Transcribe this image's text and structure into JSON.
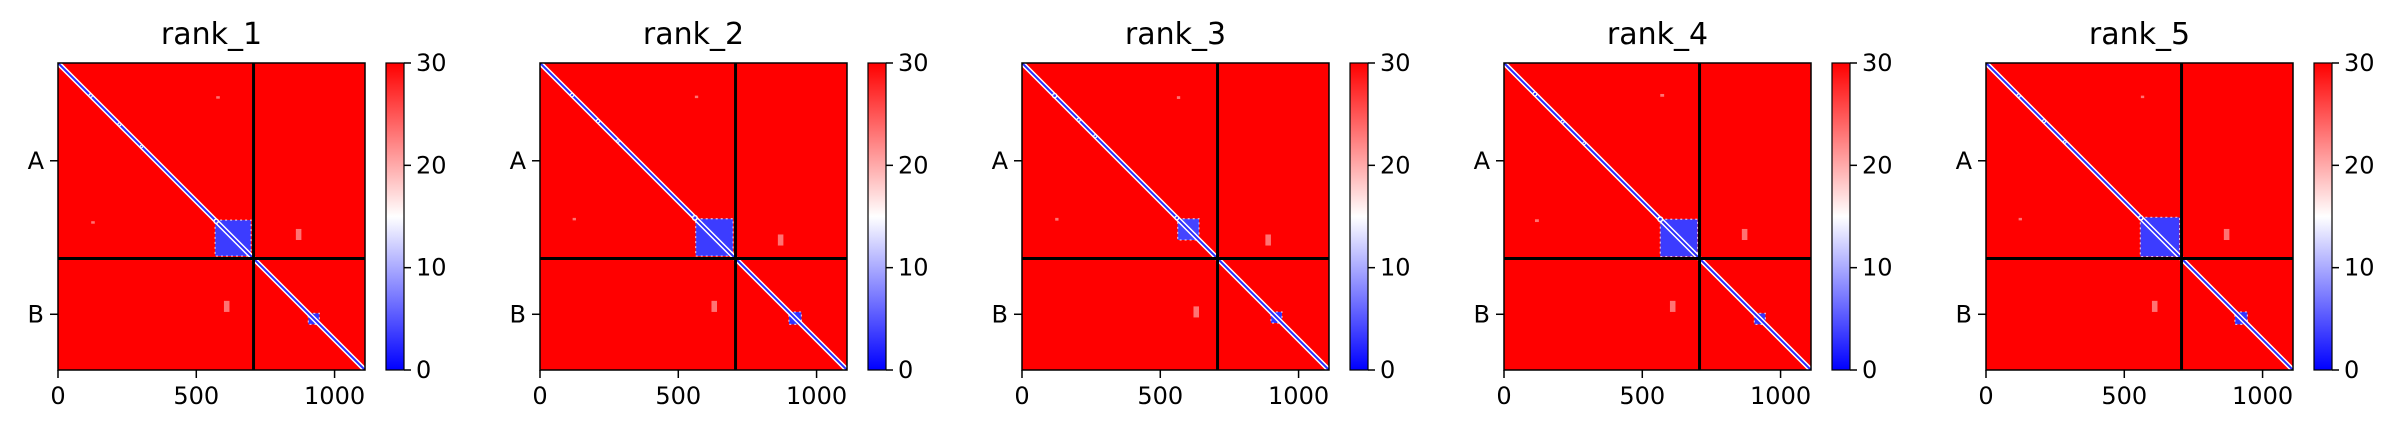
{
  "chart_data": {
    "type": "heatmap",
    "description_source": "predicted aligned error panels",
    "colormap": {
      "low": "#0000ff",
      "mid": "#ffffff",
      "high": "#ff0000"
    },
    "colorbar": {
      "min": 0,
      "max": 30,
      "ticks": [
        "0",
        "10",
        "20",
        "30"
      ]
    },
    "x_ticks": [
      "0",
      "500",
      "1000"
    ],
    "x_tick_values": [
      0,
      500,
      1000
    ],
    "x_range": [
      0,
      1110
    ],
    "chains": [
      {
        "label": "A",
        "start": 0,
        "end": 707
      },
      {
        "label": "B",
        "start": 707,
        "end": 1110
      }
    ],
    "boundary": 707,
    "panels": [
      {
        "title": "rank_1",
        "blocks": [
          [
            568,
            698,
            3.5
          ],
          [
            905,
            945,
            3.0
          ]
        ],
        "diag_spots": [
          [
            118,
            9
          ],
          [
            222,
            8
          ],
          [
            302,
            7
          ],
          [
            572,
            11
          ]
        ],
        "spots": [
          [
            572,
            120,
            13,
            9
          ],
          [
            120,
            572,
            13,
            9
          ],
          [
            860,
            600,
            20,
            40
          ],
          [
            600,
            860,
            20,
            40
          ]
        ]
      },
      {
        "title": "rank_2",
        "blocks": [
          [
            563,
            698,
            3.5
          ],
          [
            900,
            945,
            3.0
          ]
        ],
        "diag_spots": [
          [
            116,
            9
          ],
          [
            210,
            9
          ],
          [
            282,
            7
          ],
          [
            560,
            12
          ]
        ],
        "spots": [
          [
            560,
            118,
            12,
            9
          ],
          [
            118,
            560,
            12,
            9
          ],
          [
            860,
            620,
            20,
            40
          ],
          [
            620,
            860,
            20,
            40
          ]
        ]
      },
      {
        "title": "rank_3",
        "blocks": [
          [
            563,
            640,
            4.0
          ],
          [
            900,
            940,
            3.0
          ]
        ],
        "diag_spots": [
          [
            118,
            11
          ],
          [
            205,
            9
          ],
          [
            265,
            8
          ],
          [
            560,
            10
          ]
        ],
        "spots": [
          [
            560,
            120,
            12,
            10
          ],
          [
            120,
            560,
            12,
            10
          ],
          [
            880,
            620,
            20,
            40
          ],
          [
            620,
            880,
            20,
            40
          ]
        ]
      },
      {
        "title": "rank_4",
        "blocks": [
          [
            565,
            700,
            3.5
          ],
          [
            905,
            945,
            3.0
          ]
        ],
        "diag_spots": [
          [
            112,
            10
          ],
          [
            212,
            8
          ],
          [
            290,
            7
          ],
          [
            565,
            12
          ]
        ],
        "spots": [
          [
            565,
            112,
            14,
            10
          ],
          [
            112,
            565,
            14,
            10
          ],
          [
            860,
            600,
            20,
            40
          ],
          [
            600,
            860,
            20,
            40
          ]
        ]
      },
      {
        "title": "rank_5",
        "blocks": [
          [
            558,
            700,
            3.5
          ],
          [
            900,
            945,
            3.0
          ]
        ],
        "diag_spots": [
          [
            118,
            9
          ],
          [
            210,
            8
          ],
          [
            285,
            7
          ],
          [
            560,
            11
          ]
        ],
        "spots": [
          [
            560,
            118,
            12,
            9
          ],
          [
            118,
            560,
            12,
            9
          ],
          [
            860,
            600,
            20,
            40
          ],
          [
            600,
            860,
            20,
            40
          ]
        ]
      }
    ]
  }
}
